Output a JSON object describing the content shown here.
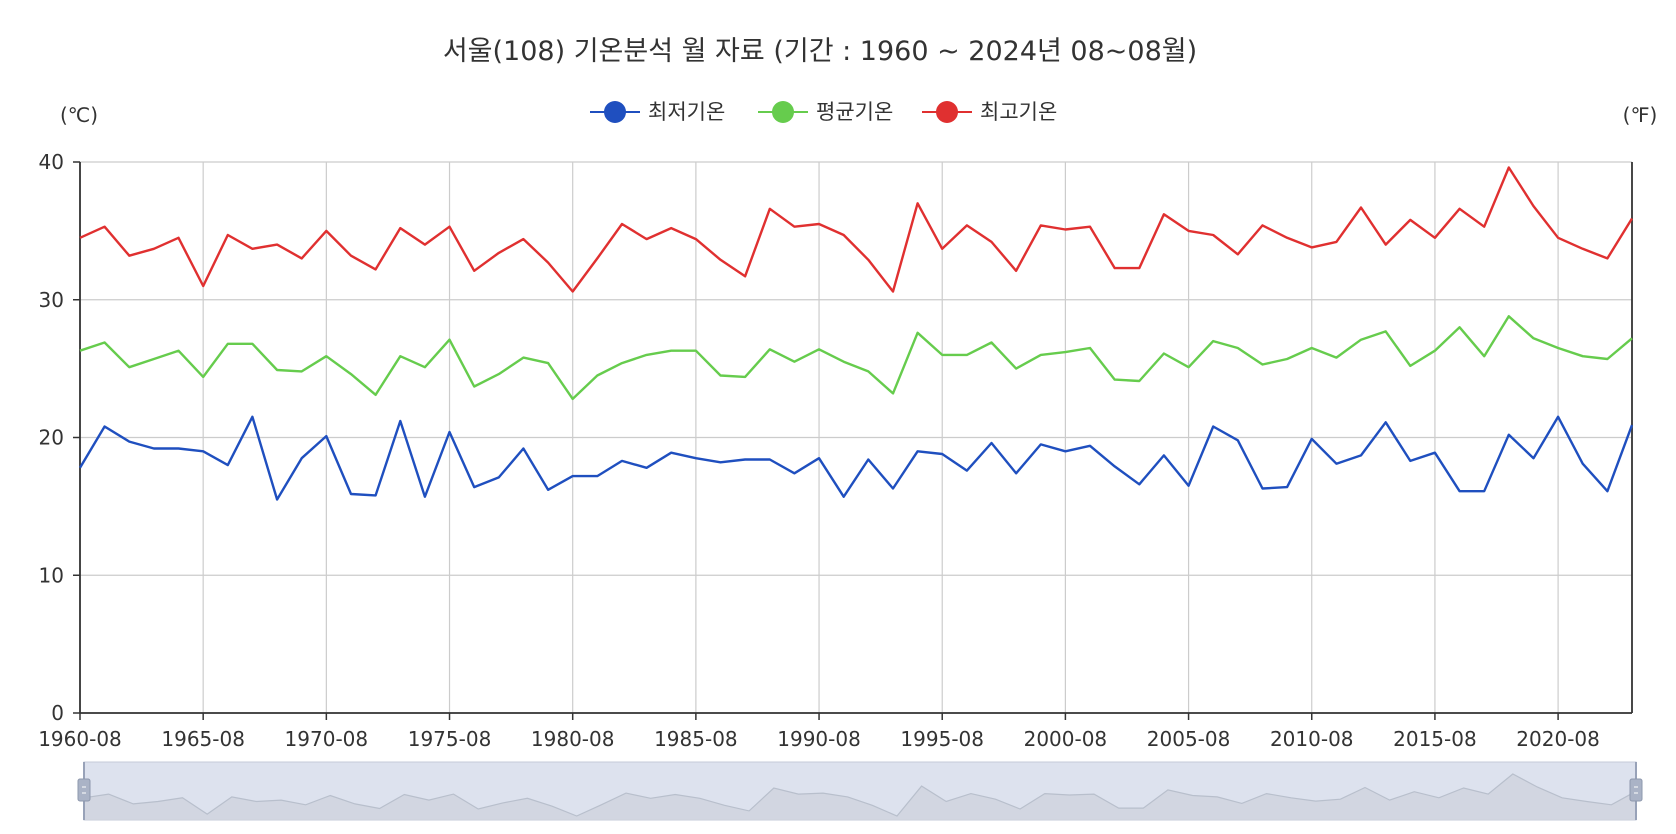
{
  "colors": {
    "min": "#1f4fbf",
    "avg": "#66cc4d",
    "max": "#e03030",
    "grid": "#cccccc",
    "axis": "#333333",
    "zoom_bg": "#dde2ee",
    "zoom_line": "#b8bfcc"
  },
  "chart_data": {
    "type": "line",
    "title": "서울(108) 기온분석 월 자료 (기간 : 1960 ~ 2024년  08~08월)",
    "y_unit_left": "(℃)",
    "y_unit_right": "(℉)",
    "ylim": [
      0,
      40
    ],
    "yticks": [
      "0",
      "10",
      "20",
      "30",
      "40"
    ],
    "xlabels": [
      "1960-08",
      "1965-08",
      "1970-08",
      "1975-08",
      "1980-08",
      "1985-08",
      "1990-08",
      "1995-08",
      "2000-08",
      "2005-08",
      "2010-08",
      "2015-08",
      "2020-08"
    ],
    "x_start_year": 1960,
    "x_end_year": 2023,
    "grid": true,
    "legend_position": "top-center",
    "series": [
      {
        "name": "최저기온",
        "color_key": "min",
        "values": [
          17.8,
          20.8,
          19.7,
          19.2,
          19.2,
          19.0,
          18.0,
          21.5,
          15.5,
          18.5,
          20.1,
          15.9,
          15.8,
          21.2,
          15.7,
          20.4,
          16.4,
          17.1,
          19.2,
          16.2,
          17.2,
          17.2,
          18.3,
          17.8,
          18.9,
          18.5,
          18.2,
          18.4,
          18.4,
          17.4,
          18.5,
          15.7,
          18.4,
          16.3,
          19.0,
          18.8,
          17.6,
          19.6,
          17.4,
          19.5,
          19.0,
          19.4,
          17.9,
          16.6,
          18.7,
          16.5,
          20.8,
          19.8,
          16.3,
          16.4,
          19.9,
          18.1,
          18.7,
          21.1,
          18.3,
          18.9,
          16.1,
          16.1,
          20.2,
          18.5,
          21.5,
          18.1,
          16.1,
          20.9
        ]
      },
      {
        "name": "평균기온",
        "color_key": "avg",
        "values": [
          26.3,
          26.9,
          25.1,
          25.7,
          26.3,
          24.4,
          26.8,
          26.8,
          24.9,
          24.8,
          25.9,
          24.6,
          23.1,
          25.9,
          25.1,
          27.1,
          23.7,
          24.6,
          25.8,
          25.4,
          22.8,
          24.5,
          25.4,
          26.0,
          26.3,
          26.3,
          24.5,
          24.4,
          26.4,
          25.5,
          26.4,
          25.5,
          24.8,
          23.2,
          27.6,
          26.0,
          26.0,
          26.9,
          25.0,
          26.0,
          26.2,
          26.5,
          24.2,
          24.1,
          26.1,
          25.1,
          27.0,
          26.5,
          25.3,
          25.7,
          26.5,
          25.8,
          27.1,
          27.7,
          25.2,
          26.3,
          28.0,
          25.9,
          28.8,
          27.2,
          26.5,
          25.9,
          25.7,
          27.2
        ]
      },
      {
        "name": "최고기온",
        "color_key": "max",
        "values": [
          34.5,
          35.3,
          33.2,
          33.7,
          34.5,
          31.0,
          34.7,
          33.7,
          34.0,
          33.0,
          35.0,
          33.2,
          32.2,
          35.2,
          34.0,
          35.3,
          32.1,
          33.4,
          34.4,
          32.7,
          30.6,
          33.0,
          35.5,
          34.4,
          35.2,
          34.4,
          32.9,
          31.7,
          36.6,
          35.3,
          35.5,
          34.7,
          32.9,
          30.6,
          37.0,
          33.7,
          35.4,
          34.2,
          32.1,
          35.4,
          35.1,
          35.3,
          32.3,
          32.3,
          36.2,
          35.0,
          34.7,
          33.3,
          35.4,
          34.5,
          33.8,
          34.2,
          36.7,
          34.0,
          35.8,
          34.5,
          36.6,
          35.3,
          39.6,
          36.8,
          34.5,
          33.7,
          33.0,
          35.9
        ]
      }
    ]
  }
}
